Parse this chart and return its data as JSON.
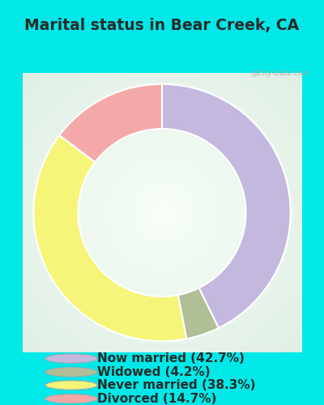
{
  "title": "Marital status in Bear Creek, CA",
  "segments": [
    {
      "label": "Now married (42.7%)",
      "value": 42.7,
      "color": "#c5b8df"
    },
    {
      "label": "Widowed (4.2%)",
      "value": 4.2,
      "color": "#b0bf96"
    },
    {
      "label": "Never married (38.3%)",
      "value": 38.3,
      "color": "#f5f57a"
    },
    {
      "label": "Divorced (14.7%)",
      "value": 14.7,
      "color": "#f5a8a8"
    }
  ],
  "background_outer": "#00e8e8",
  "title_fontsize": 13.5,
  "legend_fontsize": 11,
  "watermark": "@City-Data.com"
}
